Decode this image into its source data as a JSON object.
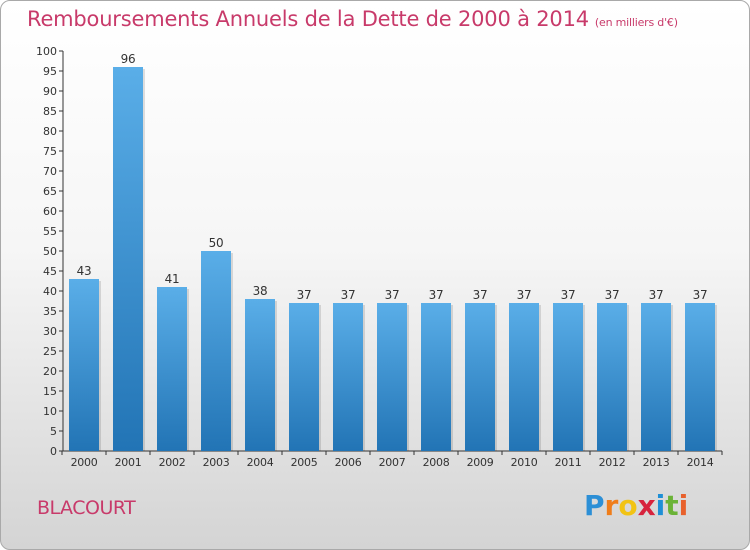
{
  "title": "Remboursements Annuels de la Dette de 2000 à 2014",
  "subtitle": "(en milliers d'€)",
  "commune": "BLACOURT",
  "logo_text": "Proxiti",
  "colors": {
    "title": "#c83a6a",
    "bar_top": "#5aaee8",
    "bar_bottom": "#2274b5"
  },
  "chart_data": {
    "type": "bar",
    "title": "Remboursements Annuels de la Dette de 2000 à 2014",
    "subtitle": "(en milliers d'€)",
    "categories": [
      "2000",
      "2001",
      "2002",
      "2003",
      "2004",
      "2005",
      "2006",
      "2007",
      "2008",
      "2009",
      "2010",
      "2011",
      "2012",
      "2013",
      "2014"
    ],
    "values": [
      43,
      96,
      41,
      50,
      38,
      37,
      37,
      37,
      37,
      37,
      37,
      37,
      37,
      37,
      37
    ],
    "data_labels": [
      "43",
      "96",
      "41",
      "50",
      "38",
      "37",
      "37",
      "37",
      "37",
      "37",
      "37",
      "37",
      "37",
      "37",
      "37"
    ],
    "ylim": [
      0,
      100
    ],
    "yticks": [
      0,
      5,
      10,
      15,
      20,
      25,
      30,
      35,
      40,
      45,
      50,
      55,
      60,
      65,
      70,
      75,
      80,
      85,
      90,
      95,
      100
    ],
    "grid": false,
    "xlabel": "",
    "ylabel": ""
  }
}
